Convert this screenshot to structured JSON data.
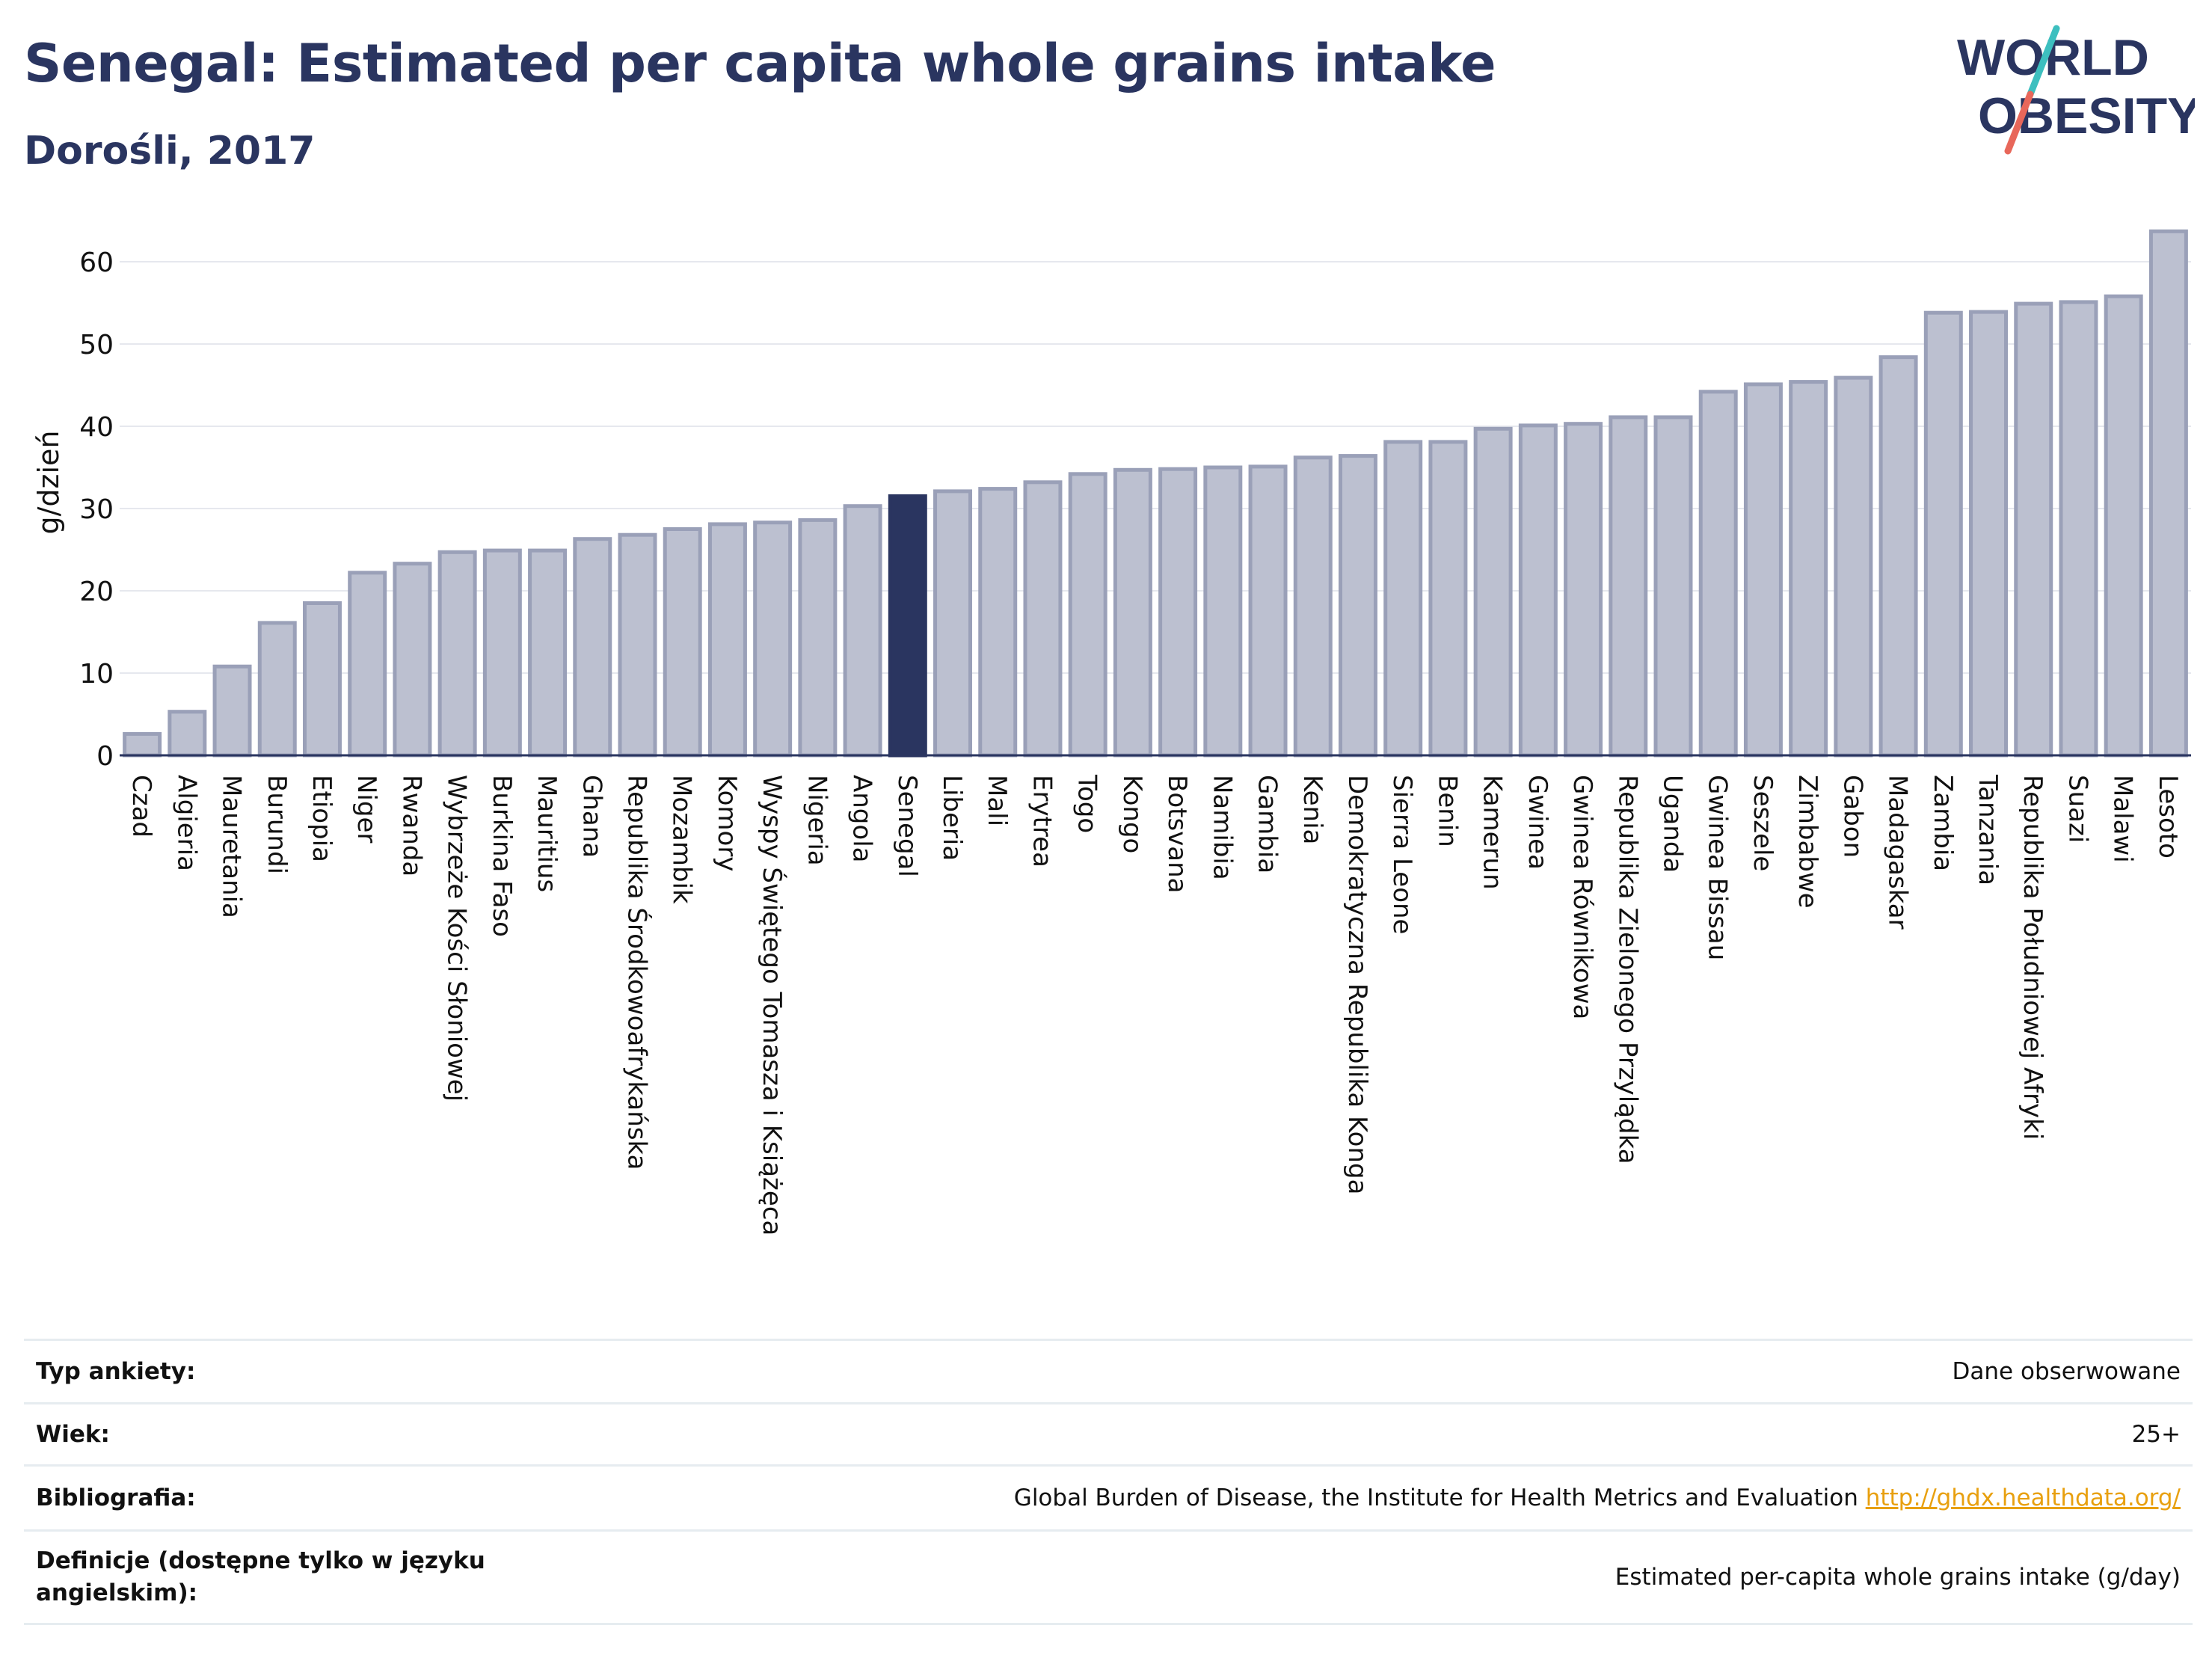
{
  "header": {
    "title": "Senegal: Estimated per capita whole grains intake",
    "subtitle": "Dorośli, 2017",
    "logo_text_line1": "WORLD",
    "logo_text_line2": "OBESITY"
  },
  "colors": {
    "bar_fill": "#bcc0d0",
    "bar_stroke": "#9aa0b8",
    "highlight": "#2a3560",
    "logo_teal": "#3dbfbf",
    "logo_coral": "#e8675a",
    "link": "#e8a00f"
  },
  "chart_data": {
    "type": "bar",
    "title": "Senegal: Estimated per capita whole grains intake",
    "subtitle": "Dorośli, 2017",
    "ylabel": "g/dzień",
    "xlabel": "",
    "ylim": [
      0,
      66
    ],
    "yticks": [
      0,
      10,
      20,
      30,
      40,
      50,
      60
    ],
    "grid": true,
    "highlight": "Senegal",
    "categories": [
      "Czad",
      "Algieria",
      "Mauretania",
      "Burundi",
      "Etiopia",
      "Niger",
      "Rwanda",
      "Wybrzeże Kości Słoniowej",
      "Burkina Faso",
      "Mauritius",
      "Ghana",
      "Republika Środkowoafrykańska",
      "Mozambik",
      "Komory",
      "Wyspy Świętego Tomasza i Książęca",
      "Nigeria",
      "Angola",
      "Senegal",
      "Liberia",
      "Mali",
      "Erytrea",
      "Togo",
      "Kongo",
      "Botsvana",
      "Namibia",
      "Gambia",
      "Kenia",
      "Demokratyczna Republika Konga",
      "Sierra Leone",
      "Benin",
      "Kamerun",
      "Gwinea",
      "Gwinea Równikowa",
      "Republika Zielonego Przylądka",
      "Uganda",
      "Gwinea Bissau",
      "Seszele",
      "Zimbabwe",
      "Gabon",
      "Madagaskar",
      "Zambia",
      "Tanzania",
      "Republika Południowej Afryki",
      "Suazi",
      "Malawi",
      "Lesoto"
    ],
    "values": [
      2.6,
      5.3,
      10.8,
      16.1,
      18.5,
      22.2,
      23.3,
      24.7,
      24.9,
      24.9,
      26.3,
      26.8,
      27.5,
      28.1,
      28.3,
      28.6,
      30.3,
      31.5,
      32.1,
      32.4,
      33.2,
      34.2,
      34.7,
      34.8,
      35.0,
      35.1,
      36.2,
      36.4,
      38.1,
      38.1,
      39.7,
      40.1,
      40.3,
      41.1,
      41.1,
      44.2,
      45.1,
      45.4,
      45.9,
      48.4,
      53.8,
      53.9,
      54.9,
      55.1,
      55.8,
      63.7
    ]
  },
  "info_table": {
    "survey_type_label": "Typ ankiety:",
    "survey_type_value": "Dane obserwowane",
    "age_label": "Wiek:",
    "age_value": "25+",
    "bibliography_label": "Bibliografia:",
    "bibliography_value": "Global Burden of Disease, the Institute for Health Metrics and Evaluation",
    "bibliography_link": "http://ghdx.healthdata.org/",
    "definitions_label": "Definicje (dostępne tylko w języku angielskim):",
    "definitions_value": "Estimated per-capita whole grains intake (g/day)"
  }
}
